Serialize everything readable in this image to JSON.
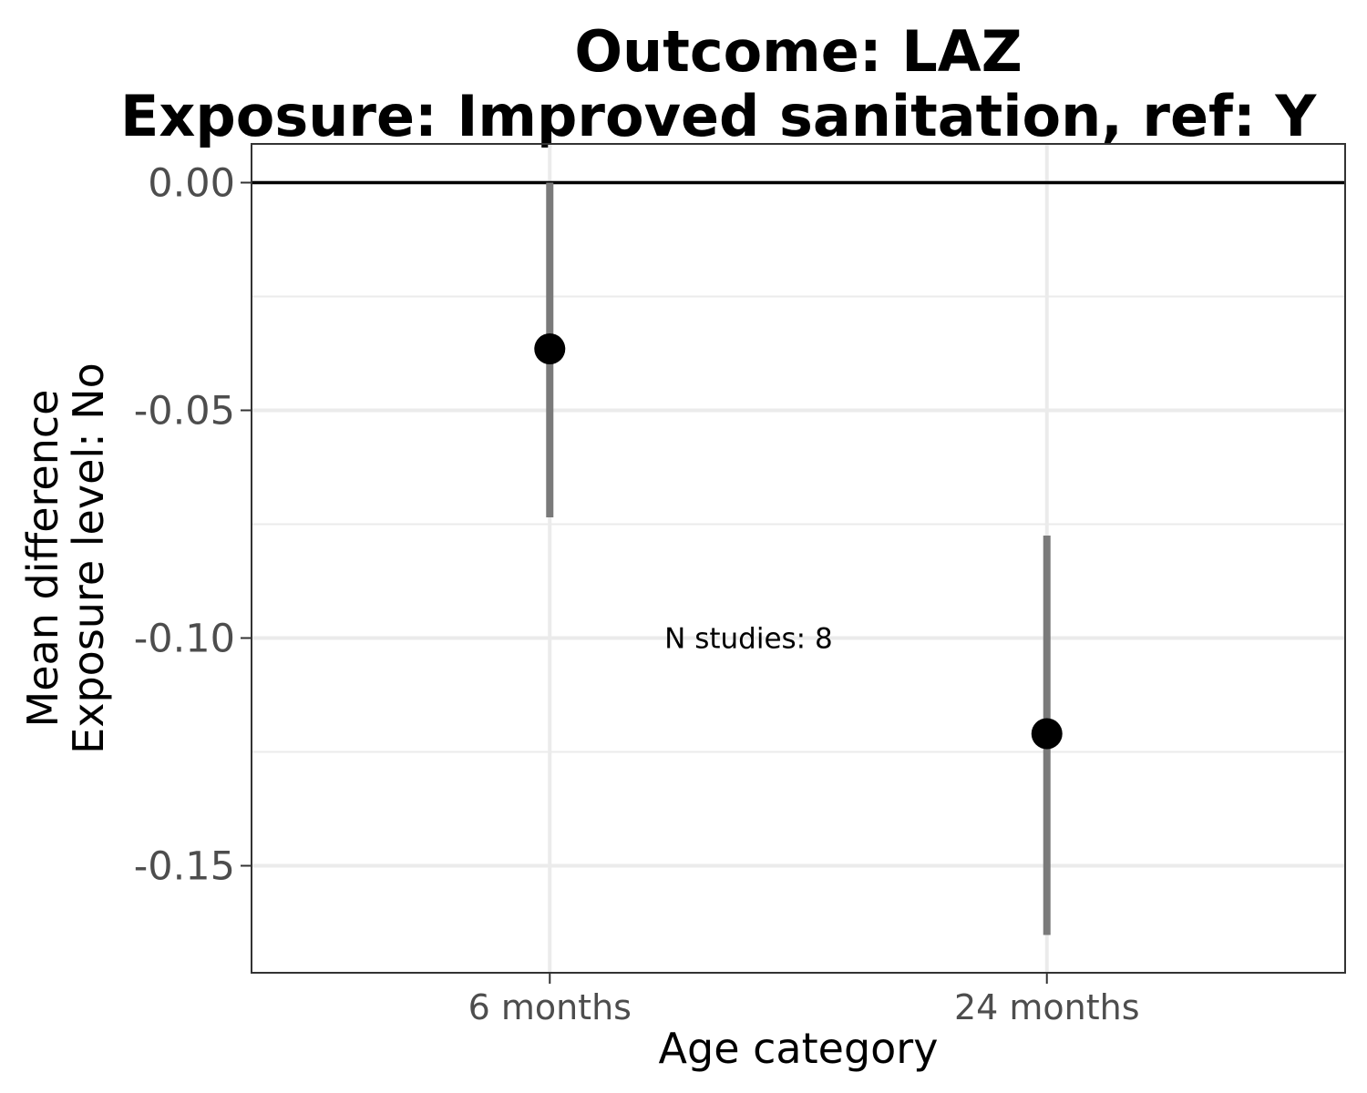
{
  "chart_data": {
    "type": "scatter",
    "title_line1": "Outcome: LAZ",
    "title_line2": "Exposure: Improved sanitation, ref: Y",
    "xlabel": "Age category",
    "ylabel_line1": "Mean difference",
    "ylabel_line2": "Exposure level: No",
    "categories": [
      "6 months",
      "24 months"
    ],
    "points": [
      {
        "x": "6 months",
        "y": -0.0365,
        "ci_lower": -0.0735,
        "ci_upper": 0.0
      },
      {
        "x": "24 months",
        "y": -0.121,
        "ci_lower": -0.1652,
        "ci_upper": -0.0775
      }
    ],
    "yticks": [
      0.0,
      -0.05,
      -0.1,
      -0.15
    ],
    "ytick_labels": [
      "0.00",
      "-0.05",
      "-0.10",
      "-0.15"
    ],
    "ylim": [
      -0.1735,
      0.0085
    ],
    "reference_line": 0,
    "grid": true,
    "annotation": {
      "text": "N studies: 8",
      "x": 1.4,
      "y": -0.1
    },
    "colors": {
      "point": "#000000",
      "errorbar": "#7a7a7a",
      "grid": "#ebebeb",
      "border": "#333333"
    }
  }
}
